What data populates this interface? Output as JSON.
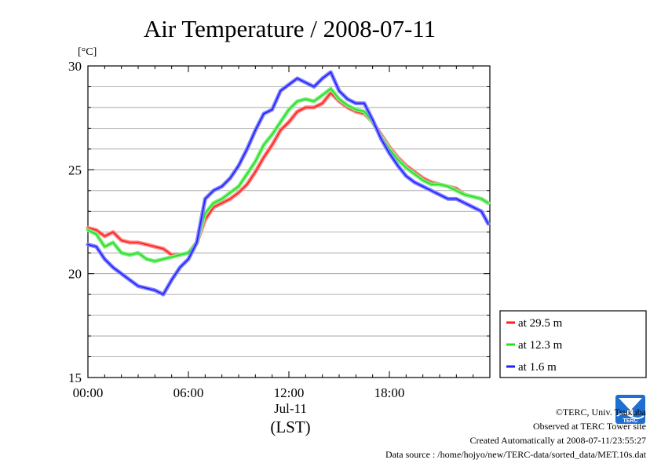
{
  "chart_data": {
    "type": "line",
    "title": "Air Temperature / 2008-07-11",
    "ylabel": "[°C]",
    "xlabel": "(LST)",
    "date_label": "Jul-11",
    "xlim": [
      0,
      24
    ],
    "ylim": [
      15,
      30
    ],
    "yticks": [
      15,
      20,
      25,
      30
    ],
    "xticks": [
      {
        "value": 0,
        "label": "00:00"
      },
      {
        "value": 6,
        "label": "06:00"
      },
      {
        "value": 12,
        "label": "12:00"
      },
      {
        "value": 18,
        "label": "18:00"
      }
    ],
    "grid": true,
    "legend_position": "bottom-right outside",
    "series": [
      {
        "name": "at 29.5 m",
        "color": "#ff2020",
        "x": [
          0,
          0.5,
          1,
          1.5,
          2,
          2.5,
          3,
          3.5,
          4,
          4.5,
          5,
          5.5,
          6,
          6.5,
          7,
          7.5,
          8,
          8.5,
          9,
          9.5,
          10,
          10.5,
          11,
          11.5,
          12,
          12.5,
          13,
          13.5,
          14,
          14.5,
          15,
          15.5,
          16,
          16.5,
          17,
          17.5,
          18,
          18.5,
          19,
          19.5,
          20,
          20.5,
          21,
          21.5,
          22,
          22.5,
          23,
          23.5,
          23.9
        ],
        "values": [
          22.2,
          22.1,
          21.8,
          22.0,
          21.6,
          21.5,
          21.5,
          21.4,
          21.3,
          21.2,
          20.9,
          20.9,
          21.0,
          21.5,
          22.6,
          23.2,
          23.4,
          23.6,
          23.9,
          24.3,
          24.9,
          25.6,
          26.2,
          26.9,
          27.3,
          27.8,
          28.0,
          28.0,
          28.2,
          28.7,
          28.3,
          28.0,
          27.8,
          27.7,
          27.3,
          26.7,
          26.1,
          25.6,
          25.2,
          24.9,
          24.6,
          24.4,
          24.3,
          24.2,
          24.1,
          23.8,
          23.7,
          23.6,
          23.4
        ]
      },
      {
        "name": "at 12.3 m",
        "color": "#20e020",
        "x": [
          0,
          0.5,
          1,
          1.5,
          2,
          2.5,
          3,
          3.5,
          4,
          4.5,
          5,
          5.5,
          6,
          6.5,
          7,
          7.5,
          8,
          8.5,
          9,
          9.5,
          10,
          10.5,
          11,
          11.5,
          12,
          12.5,
          13,
          13.5,
          14,
          14.5,
          15,
          15.5,
          16,
          16.5,
          17,
          17.5,
          18,
          18.5,
          19,
          19.5,
          20,
          20.5,
          21,
          21.5,
          22,
          22.5,
          23,
          23.5,
          23.9
        ],
        "values": [
          22.1,
          21.9,
          21.3,
          21.5,
          21.0,
          20.9,
          21.0,
          20.7,
          20.6,
          20.7,
          20.8,
          20.9,
          21.0,
          21.5,
          22.9,
          23.4,
          23.6,
          23.9,
          24.2,
          24.8,
          25.4,
          26.2,
          26.7,
          27.3,
          27.9,
          28.3,
          28.4,
          28.3,
          28.6,
          28.9,
          28.4,
          28.1,
          27.9,
          27.8,
          27.3,
          26.6,
          26.0,
          25.5,
          25.1,
          24.8,
          24.5,
          24.3,
          24.3,
          24.2,
          24.0,
          23.8,
          23.7,
          23.6,
          23.4
        ]
      },
      {
        "name": "at 1.6 m",
        "color": "#2020ff",
        "x": [
          0,
          0.5,
          1,
          1.5,
          2,
          2.5,
          3,
          3.5,
          4,
          4.5,
          5,
          5.5,
          6,
          6.5,
          7,
          7.5,
          8,
          8.5,
          9,
          9.5,
          10,
          10.5,
          11,
          11.5,
          12,
          12.5,
          13,
          13.5,
          14,
          14.5,
          15,
          15.5,
          16,
          16.5,
          17,
          17.5,
          18,
          18.5,
          19,
          19.5,
          20,
          20.5,
          21,
          21.5,
          22,
          22.5,
          23,
          23.5,
          23.9
        ],
        "values": [
          21.4,
          21.3,
          20.7,
          20.3,
          20.0,
          19.7,
          19.4,
          19.3,
          19.2,
          19.0,
          19.7,
          20.3,
          20.7,
          21.5,
          23.6,
          24.0,
          24.2,
          24.6,
          25.2,
          26.0,
          26.9,
          27.7,
          27.9,
          28.8,
          29.1,
          29.4,
          29.2,
          29.0,
          29.4,
          29.7,
          28.8,
          28.4,
          28.2,
          28.2,
          27.4,
          26.5,
          25.8,
          25.2,
          24.7,
          24.4,
          24.2,
          24.0,
          23.8,
          23.6,
          23.6,
          23.4,
          23.2,
          23.0,
          22.4
        ]
      }
    ]
  },
  "footer": {
    "copyright": "©TERC, Univ. Tsukuba",
    "observed": "Observed at TERC Tower site",
    "created": "Created Automatically at 2008-07-11/23:55:27",
    "source": "Data source : /home/hojyo/new/TERC-data/sorted_data/MET.10s.dat"
  },
  "logo_text": "TERC"
}
